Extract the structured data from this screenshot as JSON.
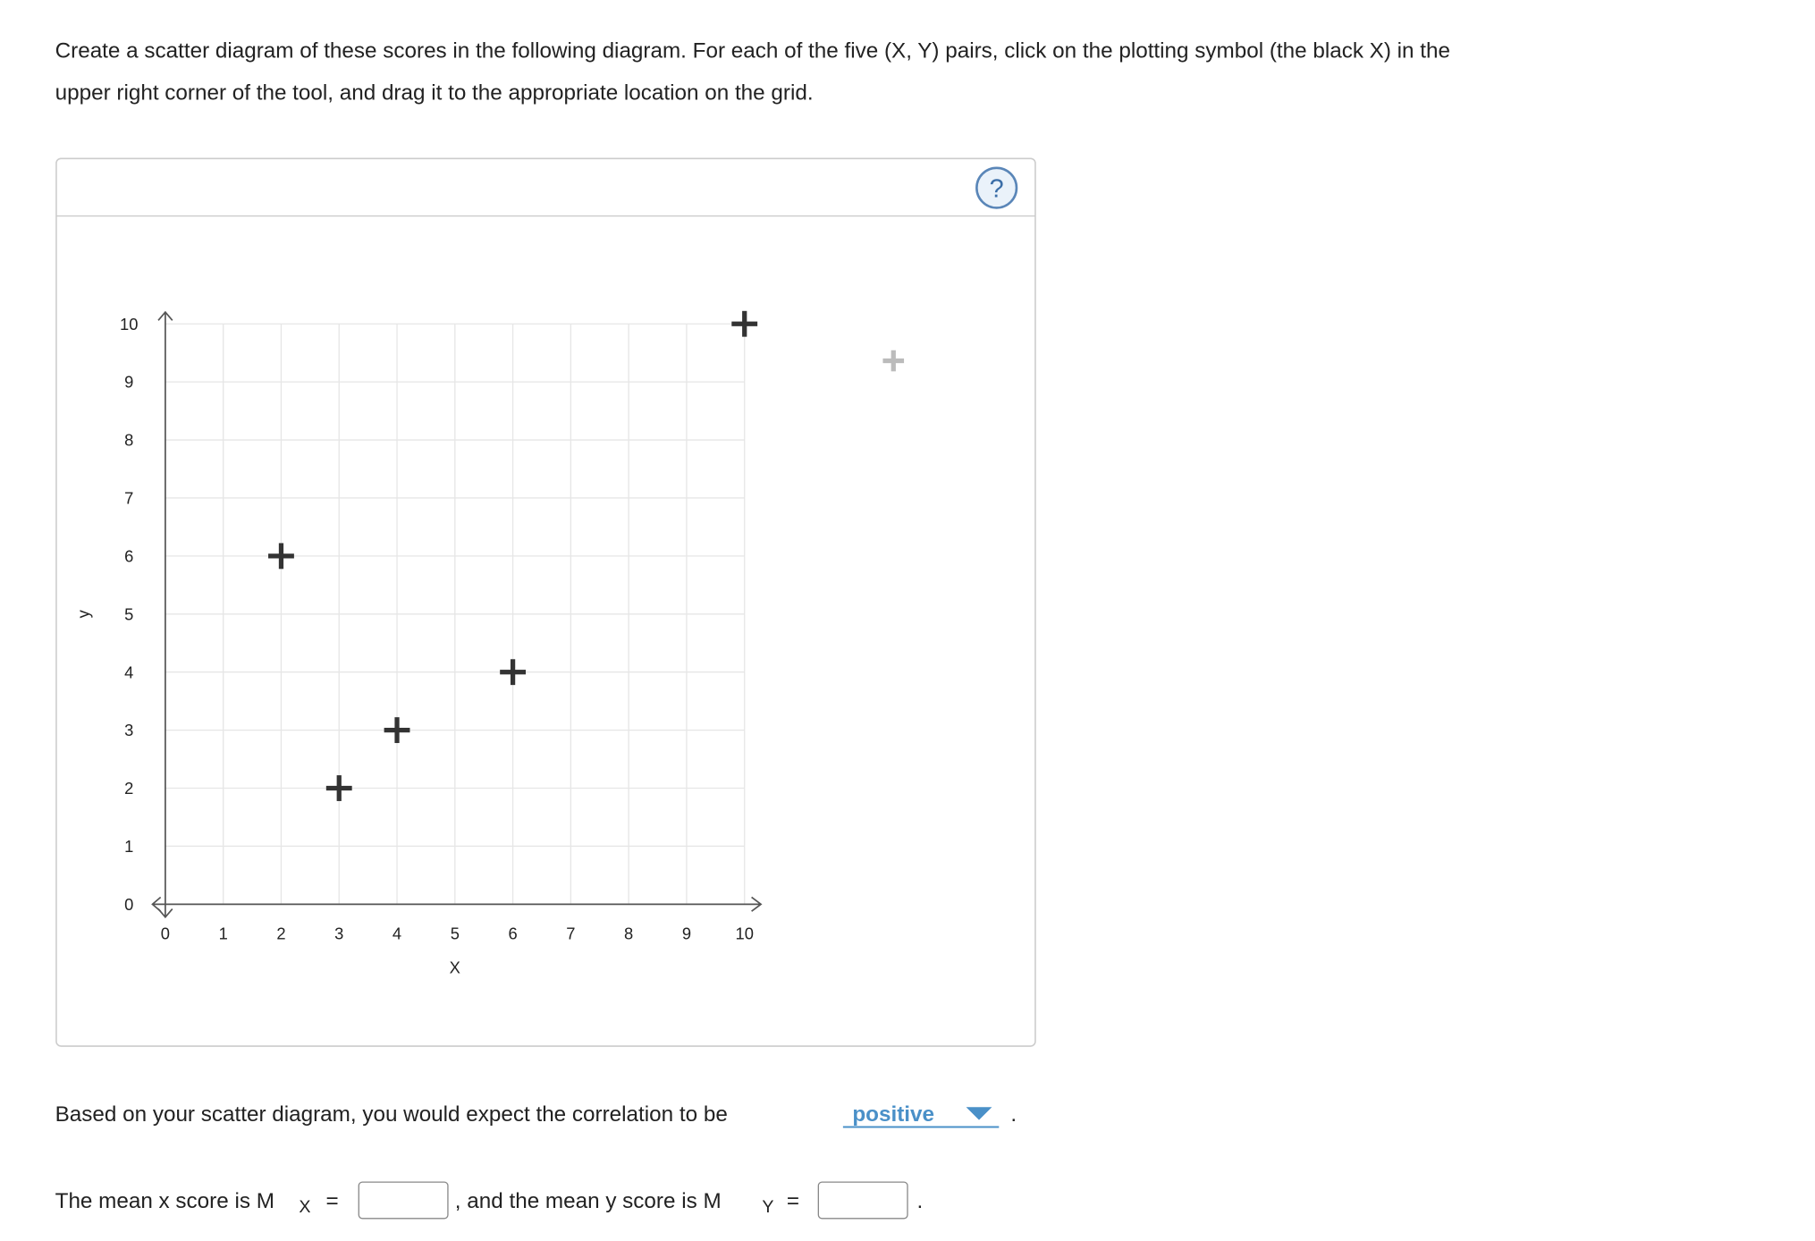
{
  "instructions": {
    "line1": "Create a scatter diagram of these scores in the following diagram. For each of the five (X, Y) pairs, click on the plotting symbol (the black X) in the",
    "line2": "upper right corner of the tool, and drag it to the appropriate location on the grid."
  },
  "help": "?",
  "chart_data": {
    "type": "scatter",
    "x_label": "X",
    "y_label": "y",
    "x": [
      2,
      3,
      4,
      6,
      10
    ],
    "series": [
      {
        "color": "#333333",
        "values": [
          6,
          2,
          3,
          4,
          10
        ]
      }
    ],
    "xlim": [
      0,
      10
    ],
    "ylim": [
      0,
      10
    ],
    "xticks": [
      0,
      1,
      2,
      3,
      4,
      5,
      6,
      7,
      8,
      9,
      10
    ],
    "yticks": [
      0,
      1,
      2,
      3,
      4,
      5,
      6,
      7,
      8,
      9,
      10
    ],
    "grid": true
  },
  "question": {
    "text": "Based on your scatter diagram, you would expect the correlation to be",
    "answer": "positive",
    "end": "."
  },
  "means": {
    "x_text": "The mean x score is M",
    "x_sub": "X",
    "eq1": "=",
    "middle": ", and the mean y score is M",
    "y_sub": "Y",
    "eq2": "=",
    "end": "."
  }
}
